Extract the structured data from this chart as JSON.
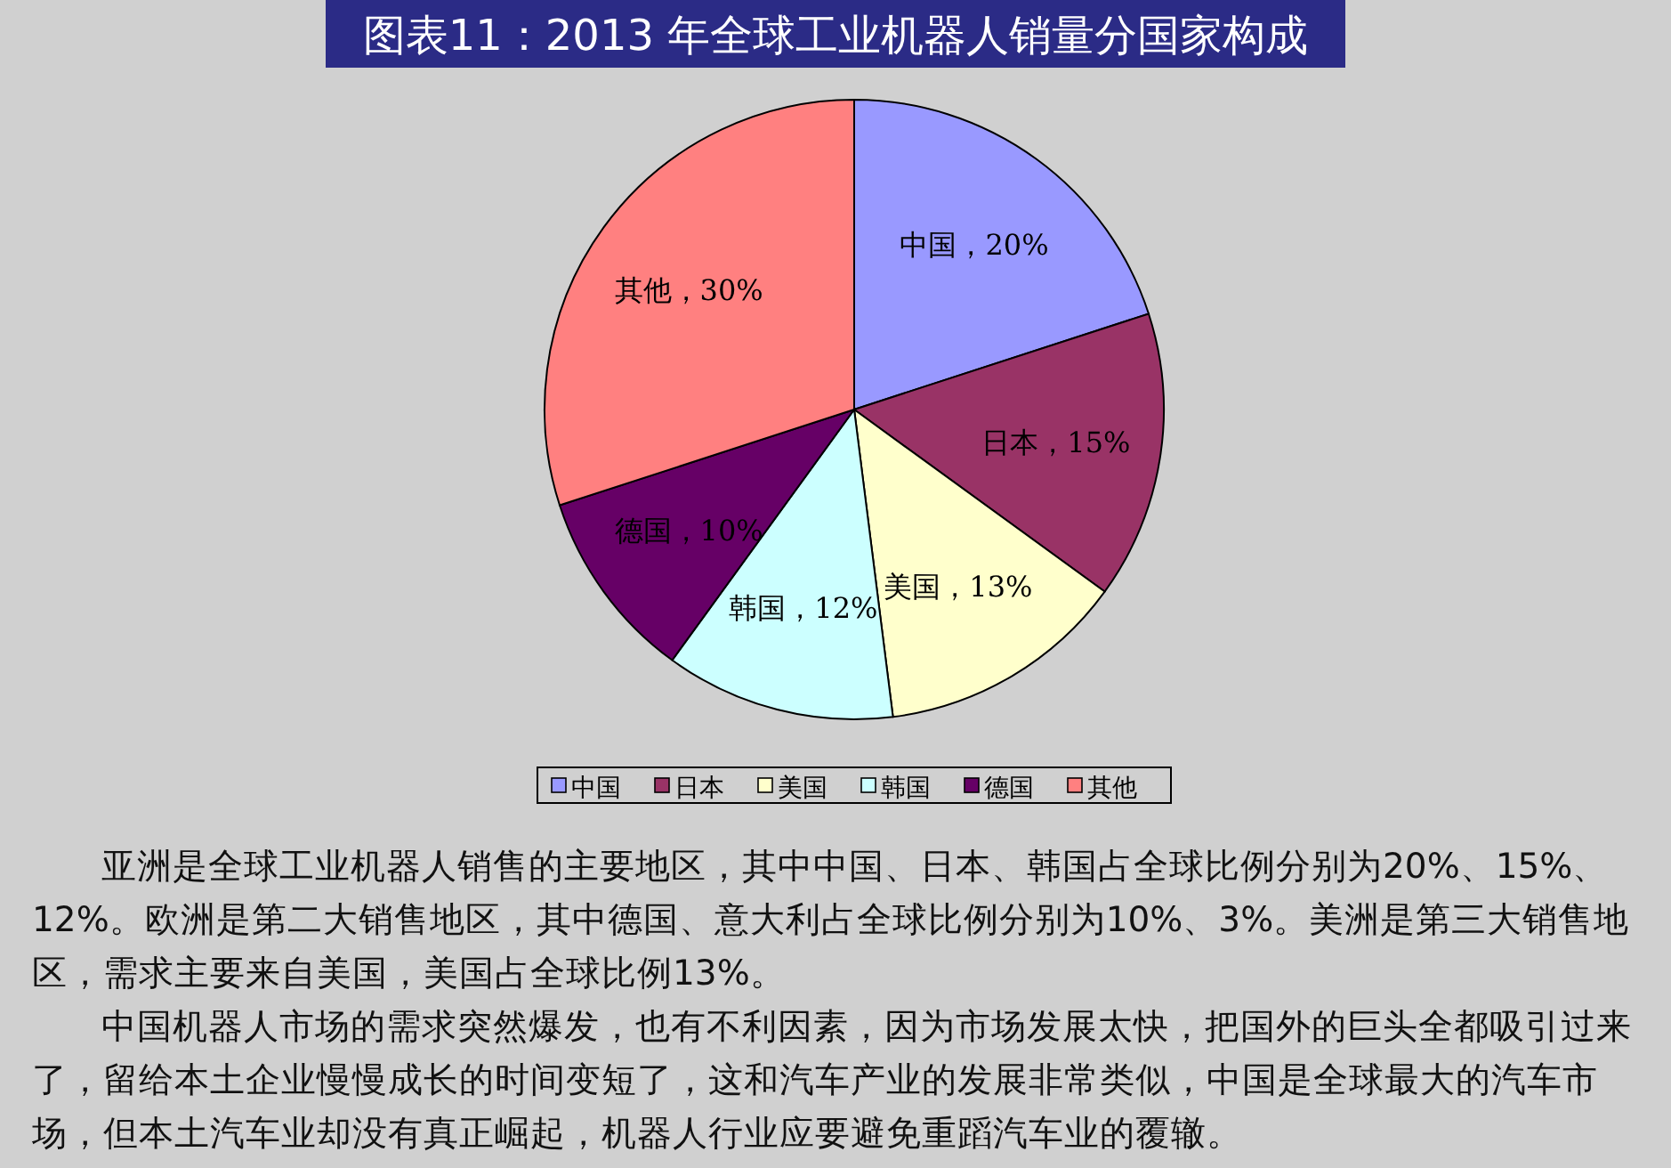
{
  "chart_data": {
    "type": "pie",
    "title": "图表11：2013 年全球工业机器人销量分国家构成",
    "categories": [
      "中国",
      "日本",
      "美国",
      "韩国",
      "德国",
      "其他"
    ],
    "values": [
      20,
      15,
      13,
      12,
      10,
      30
    ],
    "colors": [
      "#9999ff",
      "#993366",
      "#ffffcc",
      "#ccffff",
      "#660066",
      "#ff8080"
    ],
    "value_labels": [
      "中国，20%",
      "日本，15%",
      "美国，13%",
      "韩国，12%",
      "德国，10%",
      "其他，30%"
    ],
    "legend": "bottom",
    "annotations": [
      "亚洲是全球工业机器人销售的主要地区，其中中国、日本、韩国占全球比例分别为20%、15%、12%。欧洲是第二大销售地区，其中德国、意大利占全球比例分别为10%、3%。美洲是第三大销售地区，需求主要来自美国，美国占全球比例13%。",
      "中国机器人市场的需求突然爆发，也有不利因素，因为市场发展太快，把国外的巨头全都吸引过来了，留给本土企业慢慢成长的时间变短了，这和汽车产业的发展非常类似，中国是全球最大的汽车市场，但本土汽车业却没有真正崛起，机器人行业应要避免重蹈汽车业的覆辙。"
    ]
  }
}
